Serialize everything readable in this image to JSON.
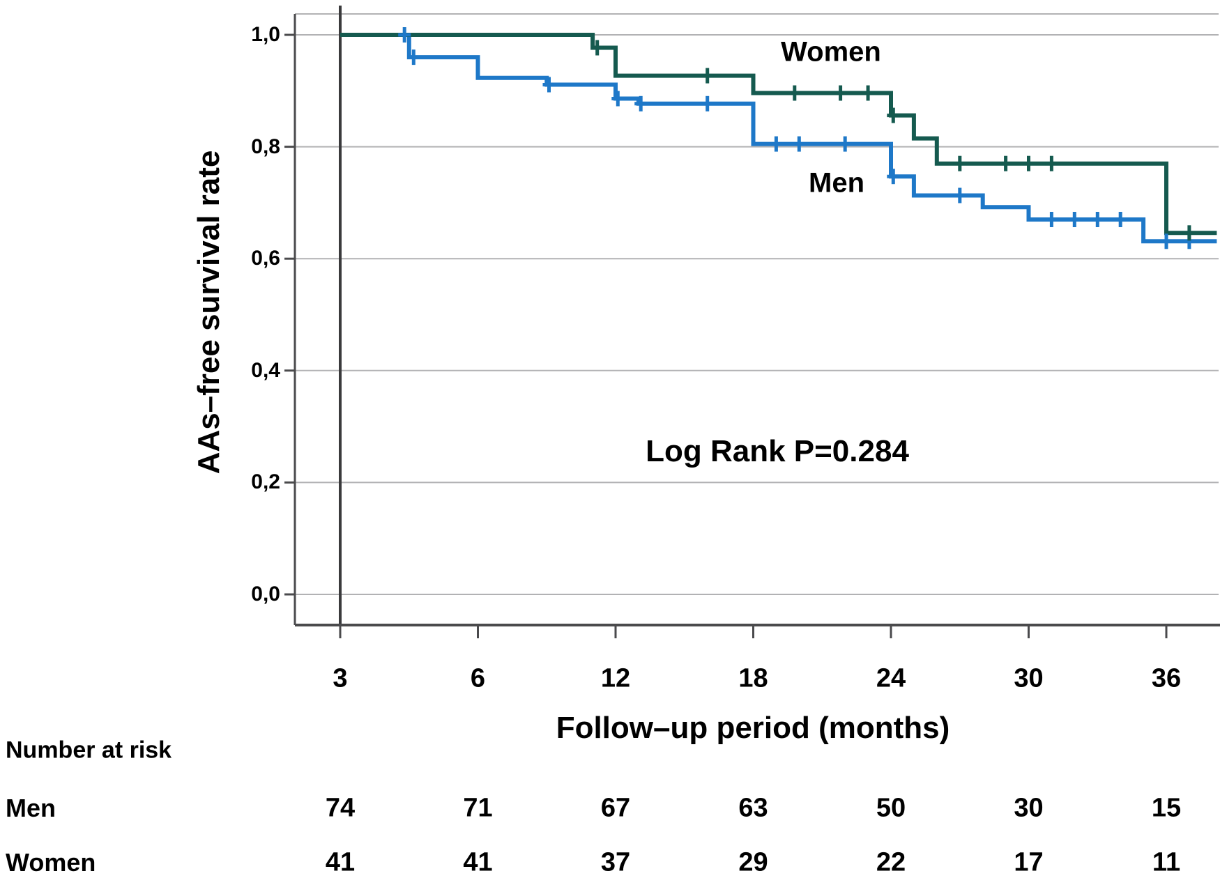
{
  "figure": {
    "curve_labels": {
      "women": "Women",
      "men": "Men"
    },
    "annotation": "Log Rank P=0.284",
    "colors": {
      "women_line": "#155a4f",
      "men_line": "#1e78c8",
      "gridline": "#b2b2b4",
      "axis": "#4a4a4c",
      "reference_line": "#3a3a3c",
      "text": "#000000"
    }
  },
  "chart_data": {
    "type": "line",
    "subtype": "kaplan-meier-step",
    "title": "",
    "xlabel": "Follow–up period (months)",
    "ylabel": "AAs–free survival rate",
    "x_ticks": [
      3,
      6,
      12,
      18,
      24,
      30,
      36
    ],
    "y_ticks": {
      "values": [
        1.0,
        0.8,
        0.6,
        0.4,
        0.2,
        0.0
      ],
      "labels": [
        "1,0",
        "0,8",
        "0,6",
        "0,4",
        "0,2",
        "0,0"
      ]
    },
    "ylim": [
      0,
      1
    ],
    "xlim_months": [
      3,
      38.2
    ],
    "grid": "horizontal",
    "legend_position": "inline-labels",
    "annotation": "Log Rank P=0.284",
    "series": [
      {
        "name": "Men",
        "color": "#1e78c8",
        "steps_month_survival": [
          [
            3,
            1.0
          ],
          [
            4.5,
            0.96
          ],
          [
            6,
            0.923
          ],
          [
            9,
            0.911
          ],
          [
            12,
            0.886
          ],
          [
            13,
            0.877
          ],
          [
            18,
            0.805
          ],
          [
            24,
            0.747
          ],
          [
            25,
            0.713
          ],
          [
            28,
            0.692
          ],
          [
            30,
            0.67
          ],
          [
            35,
            0.631
          ]
        ],
        "end_month": 38.2,
        "censor_marks": [
          [
            4.4,
            1.0
          ],
          [
            4.6,
            0.96
          ],
          [
            9.1,
            0.911
          ],
          [
            12.1,
            0.886
          ],
          [
            13.1,
            0.877
          ],
          [
            16,
            0.877
          ],
          [
            19,
            0.805
          ],
          [
            20,
            0.805
          ],
          [
            22,
            0.805
          ],
          [
            24.1,
            0.747
          ],
          [
            27,
            0.713
          ],
          [
            31,
            0.67
          ],
          [
            32,
            0.67
          ],
          [
            33,
            0.67
          ],
          [
            34,
            0.67
          ],
          [
            36,
            0.631
          ],
          [
            37,
            0.631
          ]
        ]
      },
      {
        "name": "Women",
        "color": "#155a4f",
        "steps_month_survival": [
          [
            3,
            1.0
          ],
          [
            11,
            0.977
          ],
          [
            12,
            0.927
          ],
          [
            18,
            0.896
          ],
          [
            24,
            0.856
          ],
          [
            25,
            0.815
          ],
          [
            26,
            0.77
          ],
          [
            36,
            0.646
          ]
        ],
        "end_month": 38.2,
        "censor_marks": [
          [
            11.2,
            0.977
          ],
          [
            16,
            0.927
          ],
          [
            19.8,
            0.896
          ],
          [
            21.8,
            0.896
          ],
          [
            23,
            0.896
          ],
          [
            24.1,
            0.856
          ],
          [
            27,
            0.77
          ],
          [
            29,
            0.77
          ],
          [
            30,
            0.77
          ],
          [
            31,
            0.77
          ],
          [
            37,
            0.646
          ]
        ]
      }
    ]
  },
  "risk_table": {
    "title": "Number at risk",
    "time_points": [
      3,
      6,
      12,
      18,
      24,
      30,
      36
    ],
    "rows": [
      {
        "label": "Men",
        "values": [
          "74",
          "71",
          "67",
          "63",
          "50",
          "30",
          "15"
        ]
      },
      {
        "label": "Women",
        "values": [
          "41",
          "41",
          "37",
          "29",
          "22",
          "17",
          "11"
        ]
      }
    ]
  }
}
